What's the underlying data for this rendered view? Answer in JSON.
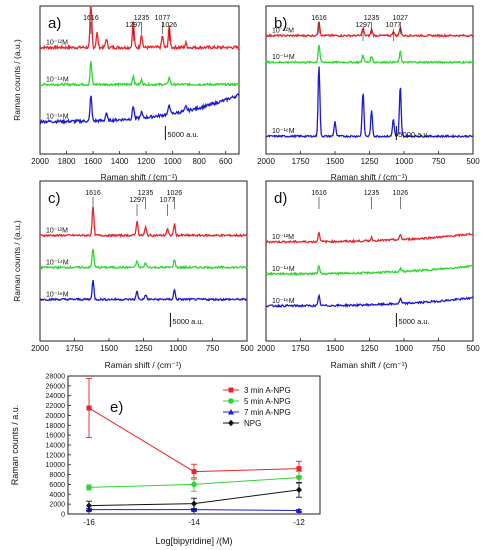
{
  "chart_data": [
    {
      "type": "line",
      "panel_label": "a)",
      "xlabel": "Raman shift / (cm⁻¹)",
      "ylabel": "Raman counts / (a.u.)",
      "xlim": [
        2000,
        500
      ],
      "x_ticks": [
        "2000",
        "1800",
        "1600",
        "1400",
        "1200",
        "1000",
        "800",
        "600"
      ],
      "x_tick_values": [
        2000,
        1800,
        1600,
        1400,
        1200,
        1000,
        800,
        600
      ],
      "scale_bar_label": "5000 a.u.",
      "peak_labels": [
        "1616",
        "1297",
        "1235",
        "1077",
        "1026"
      ],
      "peak_positions": [
        1616,
        1297,
        1235,
        1077,
        1026
      ],
      "series": [
        {
          "label": "10⁻¹²M",
          "color": "#e8242a",
          "baseline": 0.72,
          "noise": 0.02,
          "slope": 0.0,
          "peaks": [
            [
              1616,
              0.32
            ],
            [
              1570,
              0.1
            ],
            [
              1500,
              0.06
            ],
            [
              1297,
              0.18
            ],
            [
              1235,
              0.09
            ],
            [
              1077,
              0.08
            ],
            [
              1026,
              0.14
            ],
            [
              900,
              0.03
            ]
          ]
        },
        {
          "label": "10⁻¹⁴M",
          "color": "#2fd62f",
          "baseline": 0.47,
          "noise": 0.015,
          "slope": 0.0,
          "peaks": [
            [
              1616,
              0.16
            ],
            [
              1297,
              0.06
            ],
            [
              1235,
              0.03
            ],
            [
              1026,
              0.05
            ]
          ]
        },
        {
          "label": "10⁻¹⁶M",
          "color": "#1a1ad6",
          "baseline": 0.22,
          "noise": 0.02,
          "slope": 0.18,
          "peaks": [
            [
              1616,
              0.18
            ],
            [
              1500,
              0.05
            ],
            [
              1297,
              0.09
            ],
            [
              1235,
              0.04
            ],
            [
              1026,
              0.07
            ],
            [
              900,
              0.03
            ]
          ]
        }
      ]
    },
    {
      "type": "line",
      "panel_label": "b)",
      "xlabel": "Raman shift / (cm⁻¹)",
      "ylabel": "",
      "xlim": [
        2000,
        500
      ],
      "x_ticks": [
        "2000",
        "1750",
        "1500",
        "1250",
        "1000",
        "750",
        "500"
      ],
      "x_tick_values": [
        2000,
        1750,
        1500,
        1250,
        1000,
        750,
        500
      ],
      "scale_bar_label": "5000 a.u.",
      "peak_labels": [
        "1616",
        "1297",
        "1235",
        "1077",
        "1027"
      ],
      "peak_positions": [
        1616,
        1297,
        1235,
        1077,
        1027
      ],
      "series": [
        {
          "label": "10⁻¹²M",
          "color": "#e8242a",
          "baseline": 0.8,
          "noise": 0.012,
          "slope": 0.0,
          "peaks": [
            [
              1616,
              0.1
            ],
            [
              1297,
              0.05
            ],
            [
              1235,
              0.04
            ],
            [
              1077,
              0.03
            ],
            [
              1027,
              0.06
            ]
          ]
        },
        {
          "label": "10⁻¹⁴M",
          "color": "#2fd62f",
          "baseline": 0.62,
          "noise": 0.012,
          "slope": 0.0,
          "peaks": [
            [
              1616,
              0.12
            ],
            [
              1297,
              0.05
            ],
            [
              1235,
              0.04
            ],
            [
              1027,
              0.07
            ]
          ]
        },
        {
          "label": "10⁻¹⁶M",
          "color": "#1a1ad6",
          "baseline": 0.12,
          "noise": 0.012,
          "slope": 0.0,
          "peaks": [
            [
              1616,
              0.48
            ],
            [
              1500,
              0.1
            ],
            [
              1297,
              0.3
            ],
            [
              1235,
              0.17
            ],
            [
              1077,
              0.12
            ],
            [
              1027,
              0.34
            ]
          ]
        }
      ]
    },
    {
      "type": "line",
      "panel_label": "c)",
      "xlabel": "Raman shift / (cm⁻¹)",
      "ylabel": "Raman counts / (a.u.)",
      "xlim": [
        2000,
        500
      ],
      "x_ticks": [
        "2000",
        "1750",
        "1500",
        "1250",
        "1000",
        "750",
        "500"
      ],
      "x_tick_values": [
        2000,
        1750,
        1500,
        1250,
        1000,
        750,
        500
      ],
      "scale_bar_label": "5000 a.u.",
      "peak_labels": [
        "1616",
        "1297",
        "1235",
        "1077",
        "1026"
      ],
      "peak_positions": [
        1616,
        1297,
        1235,
        1077,
        1026
      ],
      "series": [
        {
          "label": "10⁻¹²M",
          "color": "#e8242a",
          "baseline": 0.66,
          "noise": 0.012,
          "slope": 0.0,
          "peaks": [
            [
              1616,
              0.18
            ],
            [
              1297,
              0.09
            ],
            [
              1235,
              0.05
            ],
            [
              1077,
              0.04
            ],
            [
              1026,
              0.07
            ]
          ]
        },
        {
          "label": "10⁻¹⁴M",
          "color": "#2fd62f",
          "baseline": 0.46,
          "noise": 0.012,
          "slope": 0.0,
          "peaks": [
            [
              1616,
              0.12
            ],
            [
              1297,
              0.04
            ],
            [
              1235,
              0.03
            ],
            [
              1026,
              0.05
            ]
          ]
        },
        {
          "label": "10⁻¹⁶M",
          "color": "#1a1ad6",
          "baseline": 0.26,
          "noise": 0.012,
          "slope": 0.0,
          "peaks": [
            [
              1616,
              0.12
            ],
            [
              1297,
              0.05
            ],
            [
              1235,
              0.03
            ],
            [
              1026,
              0.06
            ]
          ]
        }
      ]
    },
    {
      "type": "line",
      "panel_label": "d)",
      "xlabel": "Raman shift / (cm⁻¹)",
      "ylabel": "",
      "xlim": [
        2000,
        500
      ],
      "x_ticks": [
        "2000",
        "1750",
        "1500",
        "1250",
        "1000",
        "750",
        "500"
      ],
      "x_tick_values": [
        2000,
        1750,
        1500,
        1250,
        1000,
        750,
        500
      ],
      "scale_bar_label": "5000 a.u.",
      "peak_labels": [
        "1616",
        "1235",
        "1026"
      ],
      "peak_positions": [
        1616,
        1235,
        1026
      ],
      "series": [
        {
          "label": "10⁻¹²M",
          "color": "#e8242a",
          "baseline": 0.62,
          "noise": 0.012,
          "slope": 0.05,
          "peaks": [
            [
              1616,
              0.06
            ],
            [
              1235,
              0.02
            ],
            [
              1026,
              0.03
            ]
          ]
        },
        {
          "label": "10⁻¹⁴M",
          "color": "#2fd62f",
          "baseline": 0.42,
          "noise": 0.012,
          "slope": 0.05,
          "peaks": [
            [
              1616,
              0.05
            ],
            [
              1026,
              0.02
            ]
          ]
        },
        {
          "label": "10⁻¹⁶M",
          "color": "#1a1ad6",
          "baseline": 0.22,
          "noise": 0.012,
          "slope": 0.05,
          "peaks": [
            [
              1616,
              0.06
            ],
            [
              1026,
              0.03
            ]
          ]
        }
      ]
    },
    {
      "type": "line",
      "panel_label": "e)",
      "xlabel": "Log[bipyridine] /(M)",
      "ylabel": "Raman counts / a.u.",
      "x": [
        -16,
        -14,
        -12
      ],
      "xlim": [
        -16.4,
        -11.6
      ],
      "x_ticks": [
        "-16",
        "-14",
        "-12"
      ],
      "ylim": [
        0,
        28000
      ],
      "y_ticks": [
        "0",
        "2000",
        "4000",
        "6000",
        "8000",
        "10000",
        "12000",
        "14000",
        "16000",
        "18000",
        "20000",
        "22000",
        "24000",
        "26000",
        "28000"
      ],
      "legend_position": "top-right",
      "series": [
        {
          "name": "3 min A-NPG",
          "color": "#e8242a",
          "marker": "square",
          "values": [
            21500,
            8600,
            9200
          ],
          "errors": [
            6000,
            1500,
            1500
          ]
        },
        {
          "name": "5 min A-NPG",
          "color": "#2fd62f",
          "marker": "circle",
          "values": [
            5400,
            6000,
            7400
          ],
          "errors": [
            500,
            1400,
            1200
          ]
        },
        {
          "name": "7 min A-NPG",
          "color": "#1a1ad6",
          "marker": "triangle",
          "values": [
            900,
            900,
            700
          ],
          "errors": [
            200,
            200,
            200
          ]
        },
        {
          "name": "NPG",
          "color": "#111111",
          "marker": "diamond",
          "values": [
            1700,
            2100,
            4900
          ],
          "errors": [
            900,
            1100,
            1500
          ]
        }
      ]
    }
  ]
}
